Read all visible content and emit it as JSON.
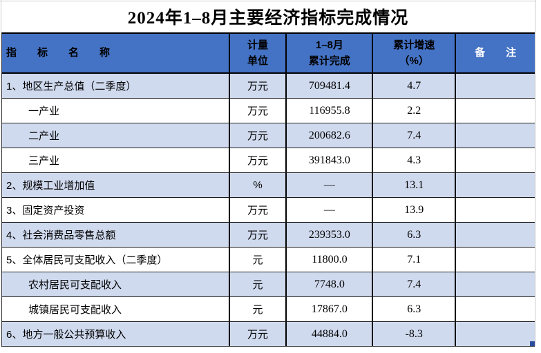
{
  "title": "2024年1–8月主要经济指标完成情况",
  "table": {
    "headers": {
      "name": "指　　标　　名　　称",
      "unit": "计量\n单位",
      "completed": "1–8月\n累计完成",
      "growth": "累计增速\n（%）",
      "note": "备　　注"
    },
    "rows": [
      {
        "name": "1、地区生产总值（二季度）",
        "unit": "万元",
        "completed": "709481.4",
        "growth": "4.7",
        "note": "",
        "indent": false
      },
      {
        "name": "一产业",
        "unit": "万元",
        "completed": "116955.8",
        "growth": "2.2",
        "note": "",
        "indent": true
      },
      {
        "name": "二产业",
        "unit": "万元",
        "completed": "200682.6",
        "growth": "7.4",
        "note": "",
        "indent": true
      },
      {
        "name": "三产业",
        "unit": "万元",
        "completed": "391843.0",
        "growth": "4.3",
        "note": "",
        "indent": true
      },
      {
        "name": "2、规模工业增加值",
        "unit": "%",
        "completed": "—",
        "growth": "13.1",
        "note": "",
        "indent": false
      },
      {
        "name": "3、固定资产投资",
        "unit": "万元",
        "completed": "—",
        "growth": "13.9",
        "note": "",
        "indent": false
      },
      {
        "name": "4、社会消费品零售总额",
        "unit": "万元",
        "completed": "239353.0",
        "growth": "6.3",
        "note": "",
        "indent": false
      },
      {
        "name": "5、全体居民可支配收入（二季度）",
        "unit": "元",
        "completed": "11800.0",
        "growth": "7.1",
        "note": "",
        "indent": false
      },
      {
        "name": "农村居民可支配收入",
        "unit": "元",
        "completed": "7748.0",
        "growth": "7.4",
        "note": "",
        "indent": true
      },
      {
        "name": "城镇居民可支配收入",
        "unit": "元",
        "completed": "17867.0",
        "growth": "6.3",
        "note": "",
        "indent": true
      },
      {
        "name": "6、地方一般公共预算收入",
        "unit": "万元",
        "completed": "44884.0",
        "growth": "-8.3",
        "note": "",
        "indent": false
      }
    ]
  },
  "colors": {
    "header_bg": "#4472C4",
    "alt_row_bg": "#D0DAEE",
    "header_note_text": "#FFFFFF",
    "border_dark": "#000000",
    "gridline_gray": "#C9C9C9",
    "fill_handle": "#2B4D9E"
  }
}
